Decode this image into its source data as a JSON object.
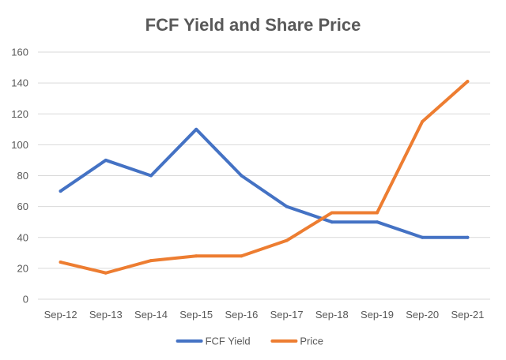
{
  "chart_data": {
    "type": "line",
    "title": "FCF Yield and Share Price",
    "xlabel": "",
    "ylabel": "",
    "categories": [
      "Sep-12",
      "Sep-13",
      "Sep-14",
      "Sep-15",
      "Sep-16",
      "Sep-17",
      "Sep-18",
      "Sep-19",
      "Sep-20",
      "Sep-21"
    ],
    "ylim": [
      0,
      160
    ],
    "yticks": [
      0,
      20,
      40,
      60,
      80,
      100,
      120,
      140,
      160
    ],
    "grid": true,
    "legend_position": "bottom",
    "series": [
      {
        "name": "FCF Yield",
        "color": "#4472C4",
        "values": [
          70,
          90,
          80,
          110,
          80,
          60,
          50,
          50,
          40,
          40
        ]
      },
      {
        "name": "Price",
        "color": "#ED7D31",
        "values": [
          24,
          17,
          25,
          28,
          28,
          38,
          56,
          56,
          115,
          141
        ]
      }
    ]
  }
}
